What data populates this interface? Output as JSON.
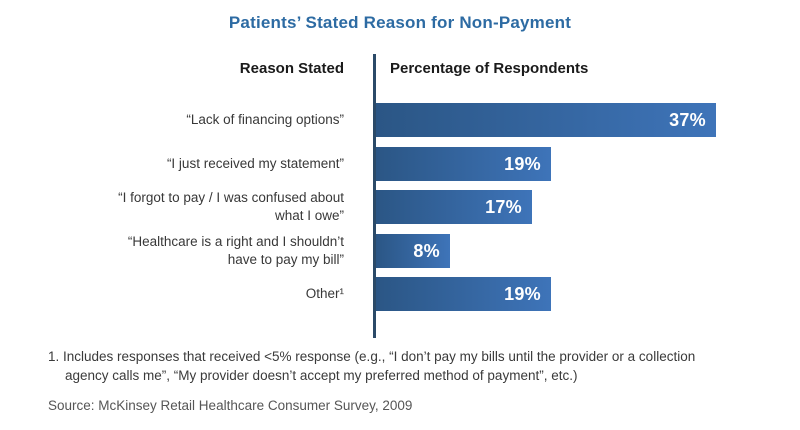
{
  "title": "Patients’ Stated Reason for Non-Payment",
  "columns": {
    "left": "Reason Stated",
    "right": "Percentage of Respondents"
  },
  "chart_data": {
    "type": "bar",
    "orientation": "horizontal",
    "title": "Patients’ Stated Reason for Non-Payment",
    "xlabel": "Percentage of Respondents",
    "ylabel": "Reason Stated",
    "categories": [
      "“Lack of financing options”",
      "“I just received my statement”",
      "“I forgot to pay / I was confused about\nwhat I owe”",
      "“Healthcare is a right and I shouldn’t\nhave to pay my bill”",
      "Other¹"
    ],
    "values": [
      37,
      19,
      17,
      8,
      19
    ],
    "value_labels": [
      "37%",
      "19%",
      "17%",
      "8%",
      "19%"
    ],
    "xlim": [
      0,
      40
    ],
    "grid": false,
    "legend": false
  },
  "footnote": "1. Includes responses that received <5% response (e.g., “I don’t pay my bills until the provider or a collection\nagency calls me”, “My provider doesn’t accept my preferred method of payment”, etc.)",
  "source": "Source: McKinsey Retail Healthcare Consumer Survey, 2009",
  "colors": {
    "title_text": "#2d6ba3",
    "bar_gradient_start": "#2b5685",
    "bar_gradient_end": "#3e74b9",
    "axis_line": "#2b4a68",
    "bar_value_text": "#ffffff"
  }
}
